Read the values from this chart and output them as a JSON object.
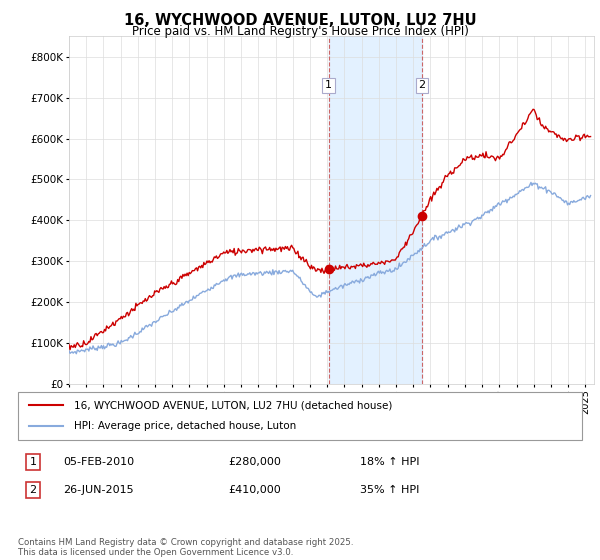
{
  "title": "16, WYCHWOOD AVENUE, LUTON, LU2 7HU",
  "subtitle": "Price paid vs. HM Land Registry's House Price Index (HPI)",
  "red_label": "16, WYCHWOOD AVENUE, LUTON, LU2 7HU (detached house)",
  "blue_label": "HPI: Average price, detached house, Luton",
  "transaction1_date": "05-FEB-2010",
  "transaction1_price": "£280,000",
  "transaction1_hpi": "18% ↑ HPI",
  "transaction1_x": 2010.09,
  "transaction1_y": 280000,
  "transaction2_date": "26-JUN-2015",
  "transaction2_price": "£410,000",
  "transaction2_hpi": "35% ↑ HPI",
  "transaction2_x": 2015.5,
  "transaction2_y": 410000,
  "footnote": "Contains HM Land Registry data © Crown copyright and database right 2025.\nThis data is licensed under the Open Government Licence v3.0.",
  "red_color": "#cc0000",
  "blue_color": "#88aadd",
  "shade_color": "#ddeeff",
  "vline_color": "#cc6666",
  "ylim": [
    0,
    850000
  ],
  "yticks": [
    0,
    100000,
    200000,
    300000,
    400000,
    500000,
    600000,
    700000,
    800000
  ],
  "ytick_labels": [
    "£0",
    "£100K",
    "£200K",
    "£300K",
    "£400K",
    "£500K",
    "£600K",
    "£700K",
    "£800K"
  ],
  "xlim_left": 1995,
  "xlim_right": 2025.5
}
